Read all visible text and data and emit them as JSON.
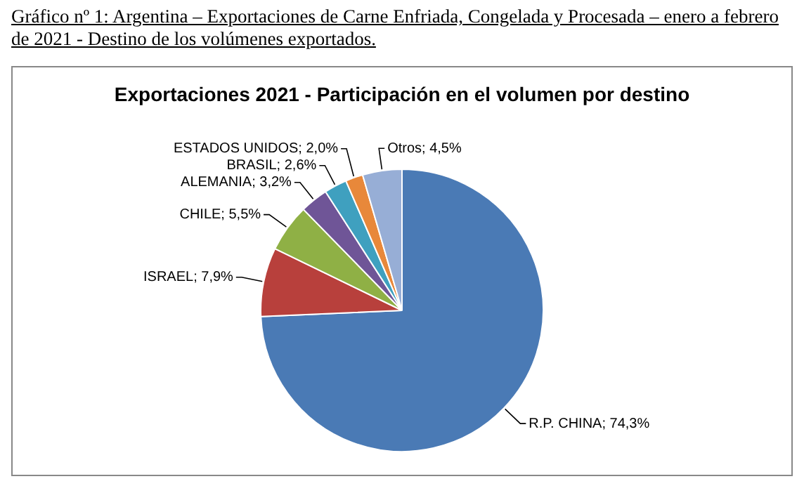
{
  "chart_data": {
    "type": "pie",
    "title": "Gráfico nº 1: Argentina – Exportaciones de Carne Enfriada, Congelada y Procesada – enero a febrero de 2021 - Destino de los volúmenes exportados.",
    "subtitle": "Exportaciones 2021 - Participación en el volumen por destino",
    "categories": [
      "R.P. CHINA",
      "ISRAEL",
      "CHILE",
      "ALEMANIA",
      "BRASIL",
      "ESTADOS UNIDOS",
      "Otros"
    ],
    "values": [
      74.3,
      7.9,
      5.5,
      3.2,
      2.6,
      2.0,
      4.5
    ],
    "colors": [
      "#4a7ab5",
      "#b8403c",
      "#8fb045",
      "#6f5597",
      "#3fa0bf",
      "#e8883a",
      "#97aed6"
    ],
    "value_labels": [
      "74,3%",
      "7,9%",
      "5,5%",
      "3,2%",
      "2,6%",
      "2,0%",
      "4,5%"
    ]
  }
}
